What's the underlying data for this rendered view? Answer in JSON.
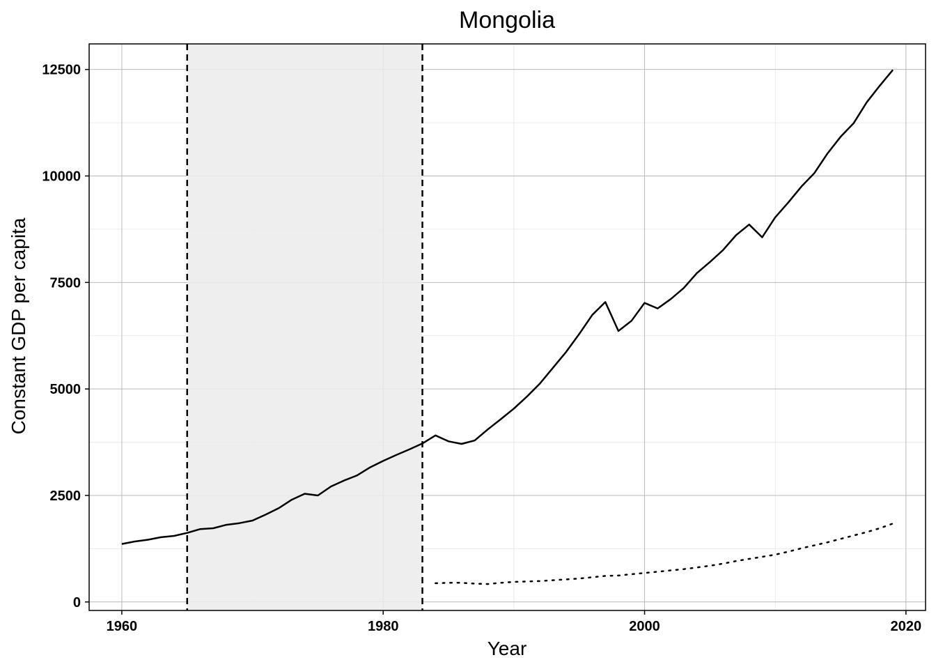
{
  "chart_data": {
    "type": "line",
    "title": "Mongolia",
    "xlabel": "Year",
    "ylabel": "Constant GDP per capita",
    "xlim": [
      1957.5,
      2021.5
    ],
    "ylim": [
      -200,
      13100
    ],
    "x_ticks": [
      1960,
      1980,
      2000,
      2020
    ],
    "y_ticks": [
      0,
      2500,
      5000,
      7500,
      10000,
      12500
    ],
    "x_tick_labels": [
      "1960",
      "1980",
      "2000",
      "2020"
    ],
    "y_tick_labels": [
      "0",
      "2500",
      "5000",
      "7500",
      "10000",
      "12500"
    ],
    "grid": true,
    "shaded_region": {
      "x": [
        1965,
        1983
      ],
      "color": "#ebebeb"
    },
    "vlines": [
      {
        "x": 1965,
        "style": "dashed"
      },
      {
        "x": 1983,
        "style": "dashed"
      }
    ],
    "series": [
      {
        "style": "solid",
        "color": "#000000",
        "x": [
          1960,
          1961,
          1962,
          1963,
          1964,
          1965,
          1966,
          1967,
          1968,
          1969,
          1970,
          1971,
          1972,
          1973,
          1974,
          1975,
          1976,
          1977,
          1978,
          1979,
          1980,
          1981,
          1982,
          1983,
          1984,
          1985,
          1986,
          1987,
          1988,
          1989,
          1990,
          1991,
          1992,
          1993,
          1994,
          1995,
          1996,
          1997,
          1998,
          1999,
          2000,
          2001,
          2002,
          2003,
          2004,
          2005,
          2006,
          2007,
          2008,
          2009,
          2010,
          2011,
          2012,
          2013,
          2014,
          2015,
          2016,
          2017,
          2018,
          2019
        ],
        "values": [
          1360,
          1420,
          1460,
          1520,
          1550,
          1620,
          1710,
          1730,
          1810,
          1850,
          1910,
          2050,
          2200,
          2400,
          2540,
          2500,
          2710,
          2850,
          2970,
          3160,
          3310,
          3450,
          3580,
          3720,
          3910,
          3770,
          3710,
          3790,
          4050,
          4290,
          4540,
          4820,
          5130,
          5500,
          5870,
          6290,
          6740,
          7040,
          6360,
          6600,
          7020,
          6890,
          7110,
          7370,
          7720,
          7980,
          8260,
          8610,
          8860,
          8560,
          9030,
          9380,
          9750,
          10070,
          10530,
          10920,
          11240,
          11730,
          12120,
          12490
        ]
      },
      {
        "style": "dotted",
        "color": "#000000",
        "x": [
          1984,
          1985,
          1986,
          1987,
          1988,
          1989,
          1990,
          1991,
          1992,
          1993,
          1994,
          1995,
          1996,
          1997,
          1998,
          1999,
          2000,
          2001,
          2002,
          2003,
          2004,
          2005,
          2006,
          2007,
          2008,
          2009,
          2010,
          2011,
          2012,
          2013,
          2014,
          2015,
          2016,
          2017,
          2018,
          2019
        ],
        "values": [
          440,
          450,
          450,
          430,
          420,
          450,
          470,
          480,
          490,
          510,
          530,
          550,
          580,
          610,
          620,
          650,
          680,
          710,
          740,
          770,
          810,
          850,
          900,
          960,
          1010,
          1060,
          1110,
          1180,
          1260,
          1330,
          1400,
          1480,
          1560,
          1640,
          1730,
          1840
        ]
      }
    ]
  }
}
